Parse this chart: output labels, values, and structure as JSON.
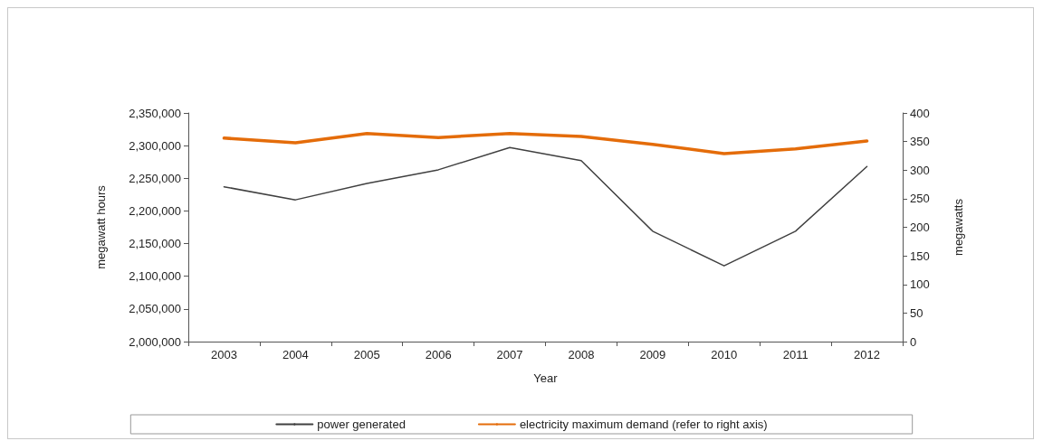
{
  "chart_data": {
    "type": "line",
    "xlabel": "Year",
    "ylabel": "megawatt hours",
    "y2label": "megawatts",
    "categories": [
      "2003",
      "2004",
      "2005",
      "2006",
      "2007",
      "2008",
      "2009",
      "2010",
      "2011",
      "2012"
    ],
    "series": [
      {
        "name": "power generated",
        "color": "#404040",
        "values": [
          2237000,
          2217000,
          2242000,
          2263000,
          2297000,
          2277000,
          2169000,
          2116000,
          2169000,
          2268000
        ]
      },
      {
        "name": "electricity maximum demand (refer to right axis)",
        "color": "#e46c0a",
        "axis": "y2",
        "values": [
          356,
          348,
          364,
          357,
          364,
          359,
          345,
          329,
          337,
          351
        ]
      }
    ],
    "ylim": [
      2000000,
      2350000
    ],
    "yticks": [
      {
        "value": 2000000,
        "label": "2,000,000"
      },
      {
        "value": 2050000,
        "label": "2,050,000"
      },
      {
        "value": 2100000,
        "label": "2,100,000"
      },
      {
        "value": 2150000,
        "label": "2,150,000"
      },
      {
        "value": 2200000,
        "label": "2,200,000"
      },
      {
        "value": 2250000,
        "label": "2,250,000"
      },
      {
        "value": 2300000,
        "label": "2,300,000"
      },
      {
        "value": 2350000,
        "label": "2,350,000"
      }
    ],
    "y2lim": [
      0,
      400
    ],
    "y2ticks": [
      0,
      50,
      100,
      150,
      200,
      250,
      300,
      350,
      400
    ],
    "grid": false,
    "legend": "bottom",
    "marker": "none",
    "line_style": "solid"
  }
}
